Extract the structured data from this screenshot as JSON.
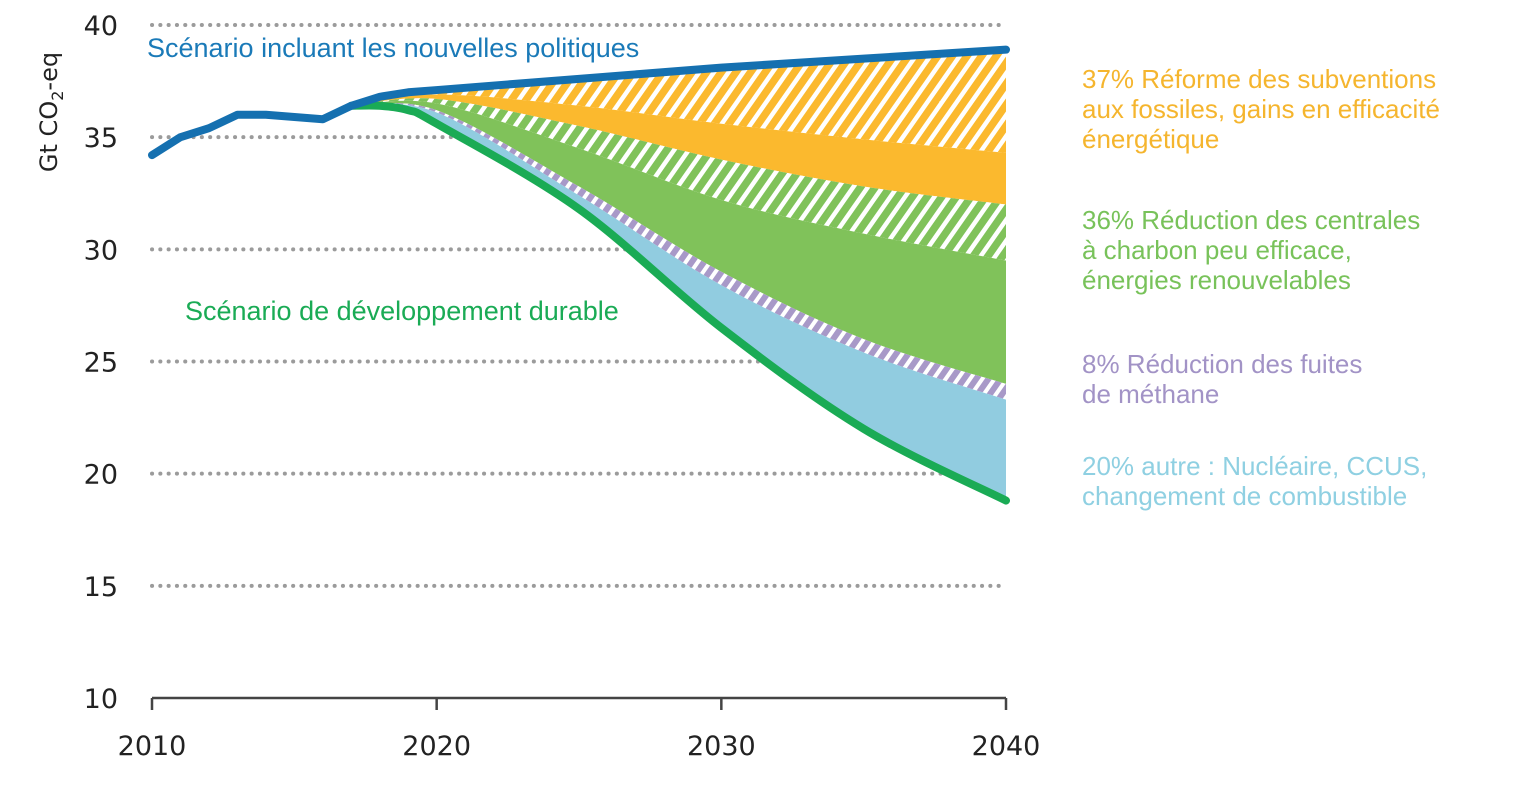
{
  "chart_data": {
    "type": "area",
    "title": "",
    "xlabel": "",
    "ylabel": "Gt CO2-eq",
    "ylabel_parts": {
      "main": "Gt CO",
      "sub": "2",
      "tail": "-eq"
    },
    "xlim": [
      2010,
      2040
    ],
    "ylim": [
      10,
      40
    ],
    "xticks": [
      2010,
      2020,
      2030,
      2040
    ],
    "yticks": [
      10,
      15,
      20,
      25,
      30,
      35,
      40
    ],
    "grid": "horizontal dotted",
    "series_lines": [
      {
        "name": "Scénario incluant les nouvelles politiques",
        "color": "#1570b0",
        "x": [
          2010,
          2011,
          2012,
          2013,
          2014,
          2015,
          2016,
          2017,
          2018,
          2019,
          2020,
          2025,
          2030,
          2035,
          2040
        ],
        "y": [
          34.2,
          35.0,
          35.4,
          36.0,
          36.0,
          35.9,
          35.8,
          36.4,
          36.8,
          37.0,
          37.1,
          37.6,
          38.1,
          38.5,
          38.9
        ]
      },
      {
        "name": "Scénario de développement durable",
        "color": "#1aab55",
        "x": [
          2017,
          2018,
          2019,
          2020,
          2025,
          2030,
          2035,
          2040
        ],
        "y": [
          36.4,
          36.4,
          36.2,
          35.6,
          31.8,
          26.5,
          22.0,
          18.8
        ]
      }
    ],
    "wedge_x": [
      2017,
      2020,
      2025,
      2030,
      2035,
      2040
    ],
    "wedge_boundaries": {
      "nps": [
        36.4,
        37.1,
        37.6,
        38.1,
        38.5,
        38.9
      ],
      "orange_split": [
        36.4,
        36.9,
        36.4,
        35.6,
        34.9,
        34.3
      ],
      "orange_bottom": [
        36.4,
        36.7,
        35.5,
        34.0,
        32.8,
        32.0
      ],
      "green_split": [
        36.4,
        36.5,
        34.5,
        32.2,
        30.7,
        29.5
      ],
      "green_bottom": [
        36.4,
        36.2,
        32.8,
        29.0,
        26.0,
        24.0
      ],
      "purple_bottom": [
        36.4,
        36.1,
        32.4,
        28.4,
        25.4,
        23.3
      ],
      "sds": [
        36.4,
        35.6,
        31.8,
        26.5,
        22.0,
        18.8
      ]
    },
    "wedges": [
      {
        "name": "37% Réforme des subventions aux fossiles, gains en efficacité énergétique",
        "share_pct": 37,
        "color": "#fbb92e"
      },
      {
        "name": "36% Réduction des centrales à charbon peu efficace, énergies renouvelables",
        "share_pct": 36,
        "color": "#80c25a"
      },
      {
        "name": "8% Réduction des fuites de méthane",
        "share_pct": 8,
        "color": "#a899c8"
      },
      {
        "name": "20% autre : Nucléaire, CCUS, changement de combustible",
        "share_pct": 20,
        "color": "#91cce0"
      }
    ],
    "legend_placement": "right",
    "annotations": [
      "Scénario incluant les nouvelles politiques",
      "Scénario de développement durable"
    ]
  },
  "legend": [
    {
      "lines": [
        "37% Réforme des subventions",
        "aux fossiles, gains en efficacité",
        "énergétique"
      ],
      "color": "#f5b52e"
    },
    {
      "lines": [
        "36% Réduction des centrales",
        "à charbon peu efficace,",
        "énergies renouvelables"
      ],
      "color": "#78c25a"
    },
    {
      "lines": [
        "8% Réduction des fuites",
        "de méthane"
      ],
      "color": "#a293c6"
    },
    {
      "lines": [
        "20% autre : Nucléaire, CCUS,",
        "changement de combustible"
      ],
      "color": "#8fd0e2"
    }
  ]
}
